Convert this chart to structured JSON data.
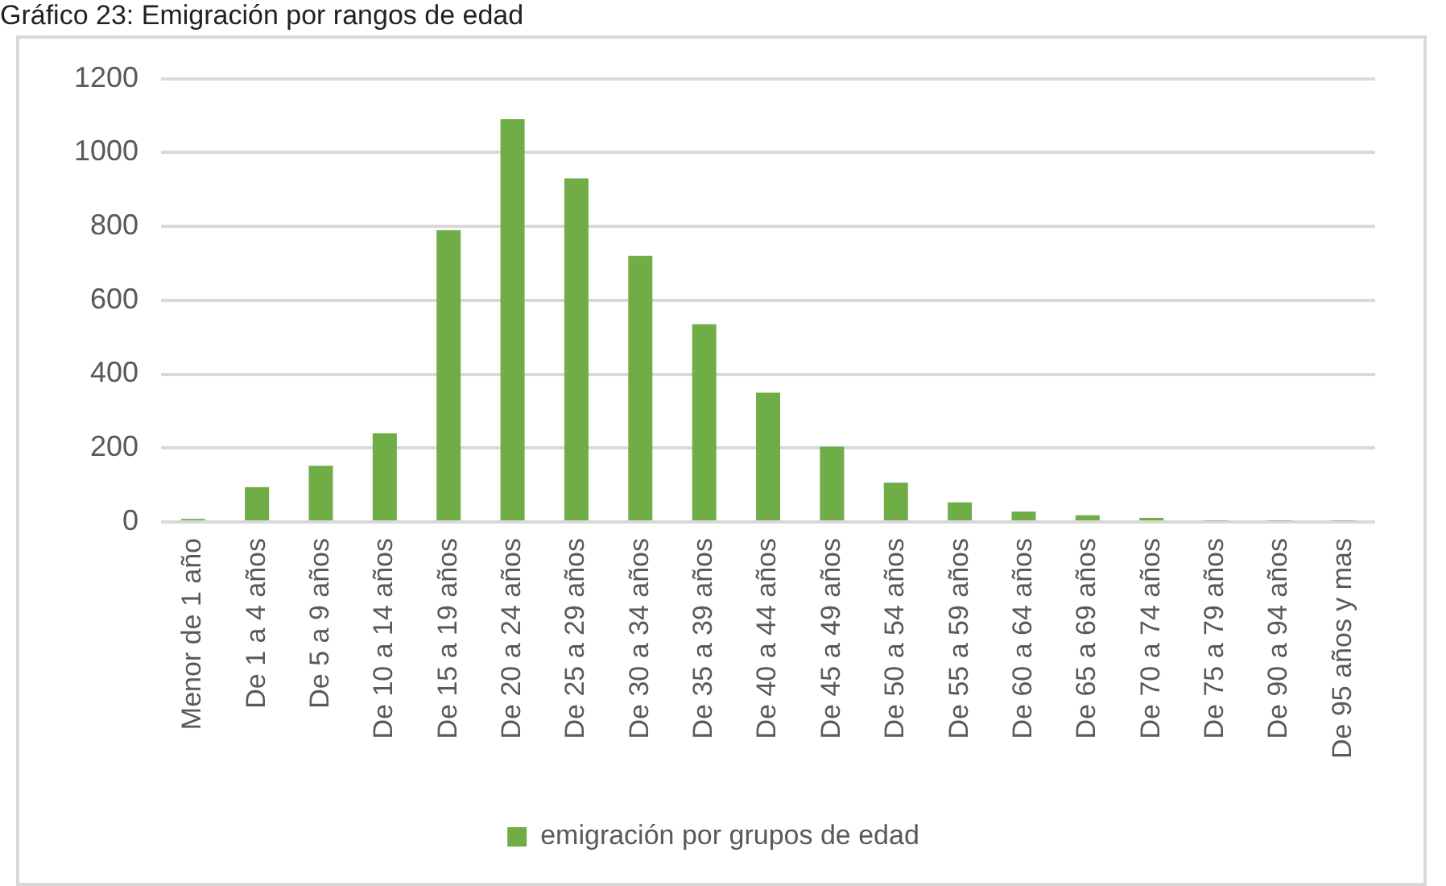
{
  "chart_data": {
    "type": "bar",
    "title": "Gráfico 23: Emigración por rangos de edad",
    "categories": [
      "Menor de 1 año",
      "De 1 a 4 años",
      "De 5 a 9 años",
      "De 10 a 14 años",
      "De 15 a 19 años",
      "De 20 a 24 años",
      "De 25 a 29 años",
      "De 30 a 34 años",
      "De 35 a 39 años",
      "De 40 a 44 años",
      "De 45 a 49 años",
      "De 50 a 54 años",
      "De 55 a 59 años",
      "De 60 a 64 años",
      "De 65 a 69 años",
      "De 70 a 74 años",
      "De 75 a 79 años",
      "De 90 a 94 años",
      "De 95 años y mas"
    ],
    "series": [
      {
        "name": "emigración por grupos de edad",
        "color": "#70ad47",
        "values": [
          8,
          94,
          152,
          240,
          790,
          1090,
          930,
          720,
          535,
          350,
          204,
          106,
          53,
          28,
          18,
          11,
          3,
          3,
          3
        ]
      }
    ],
    "ylim": [
      0,
      1200
    ],
    "yticks": [
      0,
      200,
      400,
      600,
      800,
      1000,
      1200
    ],
    "grid": "y",
    "legend": "bottom"
  }
}
